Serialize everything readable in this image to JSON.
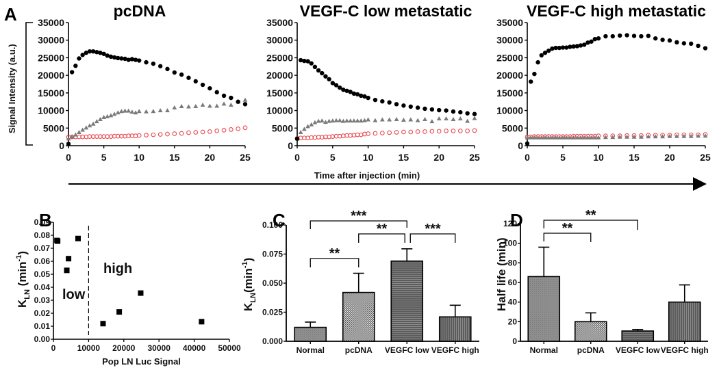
{
  "figure": {
    "panel_A_label": "A",
    "panel_B_label": "B",
    "panel_C_label": "C",
    "panel_D_label": "D",
    "shared_ylabel_A": "Signal Intensity (a.u.)",
    "shared_xlabel_A": "Time after injection (min)",
    "colors": {
      "series_filled_circle": "#000000",
      "series_triangle": "#7a7a7a",
      "series_open_circle": "#e8484f",
      "bar_normal": "#8c8c8c",
      "bar_pcdna": "#d8d8d8",
      "bar_vegfc_low": "#6a6a6a",
      "bar_vegfc_high": "#6a6a6a"
    }
  },
  "chart_data": [
    {
      "id": "A1",
      "type": "scatter",
      "title": "pcDNA",
      "xlabel": "",
      "ylabel": "Signal Intensity (a.u.)",
      "xlim": [
        0,
        25
      ],
      "ylim": [
        0,
        35000
      ],
      "xticks": [
        "0",
        "5",
        "10",
        "15",
        "20",
        "25"
      ],
      "yticks": [
        "0",
        "5000",
        "10000",
        "15000",
        "20000",
        "25000",
        "30000",
        "35000"
      ],
      "grid": false,
      "series": [
        {
          "name": "filled-circle",
          "marker": "filled-circle",
          "x": [
            0,
            0.5,
            1,
            1.5,
            2,
            2.5,
            3,
            3.5,
            4,
            4.5,
            5,
            5.5,
            6,
            6.5,
            7,
            7.5,
            8,
            8.5,
            9,
            9.5,
            10,
            11,
            12,
            13,
            14,
            15,
            16,
            17,
            18,
            19,
            20,
            21,
            22,
            23,
            24,
            25
          ],
          "y": [
            500,
            20900,
            22700,
            24800,
            25800,
            26400,
            26800,
            26800,
            26600,
            26400,
            26100,
            25600,
            25300,
            25100,
            24900,
            24800,
            24700,
            24400,
            24600,
            24400,
            24200,
            23700,
            23300,
            22600,
            21800,
            20800,
            20200,
            19300,
            18300,
            17300,
            16300,
            15200,
            14200,
            13600,
            12500,
            11800
          ]
        },
        {
          "name": "triangle",
          "marker": "triangle",
          "x": [
            0,
            0.5,
            1,
            1.5,
            2,
            2.5,
            3,
            3.5,
            4,
            4.5,
            5,
            5.5,
            6,
            6.5,
            7,
            7.5,
            8,
            8.5,
            9,
            9.5,
            10,
            11,
            12,
            13,
            14,
            15,
            16,
            17,
            18,
            19,
            20,
            21,
            22,
            23,
            24,
            25
          ],
          "y": [
            2000,
            2500,
            3100,
            3800,
            4500,
            5100,
            5700,
            6200,
            6900,
            7500,
            8100,
            8300,
            8600,
            9000,
            9400,
            9800,
            9900,
            9900,
            9600,
            9400,
            9800,
            9700,
            9800,
            10000,
            10000,
            10800,
            11200,
            11100,
            11200,
            11600,
            11300,
            11300,
            11900,
            11600,
            12500,
            13000
          ]
        },
        {
          "name": "open-circle",
          "marker": "open-circle",
          "x": [
            0,
            0.5,
            1,
            1.5,
            2,
            2.5,
            3,
            3.5,
            4,
            4.5,
            5,
            5.5,
            6,
            6.5,
            7,
            7.5,
            8,
            8.5,
            9,
            9.5,
            10,
            11,
            12,
            13,
            14,
            15,
            16,
            17,
            18,
            19,
            20,
            21,
            22,
            23,
            24,
            25
          ],
          "y": [
            2400,
            2500,
            2500,
            2500,
            2500,
            2500,
            2600,
            2600,
            2600,
            2600,
            2600,
            2600,
            2600,
            2700,
            2700,
            2700,
            2700,
            2800,
            2800,
            2800,
            2900,
            3000,
            3100,
            3200,
            3300,
            3400,
            3500,
            3700,
            3800,
            3900,
            4000,
            4200,
            4400,
            4600,
            4800,
            5100
          ]
        }
      ]
    },
    {
      "id": "A2",
      "type": "scatter",
      "title": "VEGF-C low metastatic",
      "xlabel": "Time after injection (min)",
      "ylabel": "",
      "xlim": [
        0,
        25
      ],
      "ylim": [
        0,
        35000
      ],
      "xticks": [
        "0",
        "5",
        "10",
        "15",
        "20",
        "25"
      ],
      "yticks": [
        "0",
        "5000",
        "10000",
        "15000",
        "20000",
        "25000",
        "30000",
        "35000"
      ],
      "grid": false,
      "series": [
        {
          "name": "filled-circle",
          "marker": "filled-circle",
          "x": [
            0,
            0.5,
            1,
            1.5,
            2,
            2.5,
            3,
            3.5,
            4,
            4.5,
            5,
            5.5,
            6,
            6.5,
            7,
            7.5,
            8,
            8.5,
            9,
            9.5,
            10,
            11,
            12,
            13,
            14,
            15,
            16,
            17,
            18,
            19,
            20,
            21,
            22,
            23,
            24,
            25
          ],
          "y": [
            2000,
            24300,
            24100,
            24000,
            23400,
            22400,
            21400,
            20600,
            19700,
            18900,
            17800,
            17200,
            16500,
            15900,
            15600,
            15300,
            14800,
            14600,
            14200,
            14000,
            13600,
            13000,
            12600,
            12300,
            11800,
            11400,
            11100,
            10800,
            10500,
            10300,
            10100,
            10000,
            9700,
            9500,
            9200,
            9000
          ]
        },
        {
          "name": "triangle",
          "marker": "triangle",
          "x": [
            0,
            0.5,
            1,
            1.5,
            2,
            2.5,
            3,
            3.5,
            4,
            4.5,
            5,
            5.5,
            6,
            6.5,
            7,
            7.5,
            8,
            8.5,
            9,
            9.5,
            10,
            11,
            12,
            13,
            14,
            15,
            16,
            17,
            18,
            19,
            20,
            21,
            22,
            23,
            24,
            25
          ],
          "y": [
            2000,
            3800,
            4700,
            5500,
            6000,
            6600,
            7000,
            7100,
            6700,
            7000,
            7100,
            7200,
            7200,
            7000,
            7100,
            7100,
            7100,
            7100,
            7100,
            7200,
            7400,
            7200,
            7400,
            7400,
            7500,
            7300,
            7400,
            7200,
            7500,
            6900,
            7700,
            7700,
            7500,
            7700,
            7000,
            7800
          ]
        },
        {
          "name": "open-circle",
          "marker": "open-circle",
          "x": [
            0,
            0.5,
            1,
            1.5,
            2,
            2.5,
            3,
            3.5,
            4,
            4.5,
            5,
            5.5,
            6,
            6.5,
            7,
            7.5,
            8,
            8.5,
            9,
            9.5,
            10,
            11,
            12,
            13,
            14,
            15,
            16,
            17,
            18,
            19,
            20,
            21,
            22,
            23,
            24,
            25
          ],
          "y": [
            2100,
            2200,
            2200,
            2200,
            2300,
            2300,
            2400,
            2400,
            2500,
            2500,
            2600,
            2700,
            2700,
            2800,
            2900,
            2900,
            3000,
            3100,
            3100,
            3300,
            3400,
            3500,
            3600,
            3700,
            3800,
            3900,
            3900,
            4000,
            4000,
            4100,
            4100,
            4200,
            4200,
            4200,
            4200,
            4300
          ]
        }
      ]
    },
    {
      "id": "A3",
      "type": "scatter",
      "title": "VEGF-C high metastatic",
      "xlabel": "",
      "ylabel": "",
      "xlim": [
        0,
        25
      ],
      "ylim": [
        0,
        35000
      ],
      "xticks": [
        "0",
        "5",
        "10",
        "15",
        "20",
        "25"
      ],
      "yticks": [
        "0",
        "5000",
        "10000",
        "15000",
        "20000",
        "25000",
        "30000",
        "35000"
      ],
      "grid": false,
      "series": [
        {
          "name": "filled-circle",
          "marker": "filled-circle",
          "x": [
            0,
            0.5,
            1,
            1.5,
            2,
            2.5,
            3,
            3.5,
            4,
            4.5,
            5,
            5.5,
            6,
            6.5,
            7,
            7.5,
            8,
            8.5,
            9,
            9.5,
            10,
            11,
            12,
            13,
            14,
            15,
            16,
            17,
            18,
            19,
            20,
            21,
            22,
            23,
            24,
            25
          ],
          "y": [
            600,
            18200,
            20400,
            23700,
            25700,
            26400,
            27000,
            27600,
            27800,
            27800,
            27900,
            27900,
            28100,
            28200,
            28300,
            28500,
            28700,
            29300,
            29600,
            30300,
            30500,
            31100,
            31100,
            31300,
            31400,
            31200,
            31100,
            31200,
            30500,
            30100,
            29900,
            29400,
            29100,
            29000,
            28400,
            27700
          ]
        },
        {
          "name": "triangle",
          "marker": "triangle",
          "x": [
            0,
            0.5,
            1,
            1.5,
            2,
            2.5,
            3,
            3.5,
            4,
            4.5,
            5,
            5.5,
            6,
            6.5,
            7,
            7.5,
            8,
            8.5,
            9,
            9.5,
            10,
            11,
            12,
            13,
            14,
            15,
            16,
            17,
            18,
            19,
            20,
            21,
            22,
            23,
            24,
            25
          ],
          "y": [
            2300,
            2300,
            2300,
            2300,
            2300,
            2300,
            2300,
            2300,
            2300,
            2300,
            2300,
            2300,
            2300,
            2300,
            2300,
            2300,
            2300,
            2300,
            2300,
            2300,
            2300,
            2400,
            2400,
            2500,
            2500,
            2500,
            2500,
            2600,
            2600,
            2600,
            2700,
            2700,
            2700,
            2700,
            2800,
            2800
          ]
        },
        {
          "name": "open-circle",
          "marker": "open-circle",
          "x": [
            0,
            0.5,
            1,
            1.5,
            2,
            2.5,
            3,
            3.5,
            4,
            4.5,
            5,
            5.5,
            6,
            6.5,
            7,
            7.5,
            8,
            8.5,
            9,
            9.5,
            10,
            11,
            12,
            13,
            14,
            15,
            16,
            17,
            18,
            19,
            20,
            21,
            22,
            23,
            24,
            25
          ],
          "y": [
            2500,
            2500,
            2600,
            2600,
            2600,
            2600,
            2600,
            2600,
            2600,
            2600,
            2600,
            2600,
            2600,
            2700,
            2700,
            2700,
            2700,
            2700,
            2700,
            2700,
            2800,
            2800,
            2800,
            2800,
            2900,
            2900,
            2900,
            3000,
            3000,
            3000,
            3000,
            3100,
            3100,
            3100,
            3100,
            3200
          ]
        }
      ]
    },
    {
      "id": "B",
      "type": "scatter",
      "title": "",
      "xlabel": "Pop LN Luc Signal",
      "ylabel_main": "K",
      "ylabel_sub": "LN",
      "ylabel_rest": " (min",
      "ylabel_sup": "-1",
      "ylabel_close": ")",
      "xlim": [
        0,
        50000
      ],
      "ylim": [
        0,
        0.09
      ],
      "xticks": [
        "0",
        "10000",
        "20000",
        "30000",
        "40000",
        "50000"
      ],
      "yticks": [
        "0.00",
        "0.01",
        "0.02",
        "0.03",
        "0.04",
        "0.05",
        "0.06",
        "0.07",
        "0.08",
        "0.09"
      ],
      "grid": false,
      "threshold_x": 10000,
      "annotations": [
        "low",
        "high"
      ],
      "points": [
        {
          "x": 1000,
          "y": 0.076
        },
        {
          "x": 1200,
          "y": 0.0755
        },
        {
          "x": 7000,
          "y": 0.0775
        },
        {
          "x": 4300,
          "y": 0.062
        },
        {
          "x": 3800,
          "y": 0.053
        },
        {
          "x": 24800,
          "y": 0.0355
        },
        {
          "x": 18700,
          "y": 0.021
        },
        {
          "x": 14100,
          "y": 0.012
        },
        {
          "x": 42100,
          "y": 0.0135
        }
      ]
    },
    {
      "id": "C",
      "type": "bar",
      "title": "",
      "xlabel": "",
      "ylabel_main": "K",
      "ylabel_sub": "LN",
      "ylabel_rest": "(min",
      "ylabel_sup": "-1",
      "ylabel_close": ")",
      "categories": [
        "Normal",
        "pcDNA",
        "VEGFC low",
        "VEGFC high"
      ],
      "values": [
        0.012,
        0.042,
        0.069,
        0.021
      ],
      "errors": [
        0.0045,
        0.0165,
        0.0105,
        0.01
      ],
      "ylim": [
        0,
        0.1
      ],
      "yticks": [
        "0.000",
        "0.025",
        "0.050",
        "0.075",
        "0.100"
      ],
      "grid": false,
      "significance": [
        {
          "from": "Normal",
          "to": "VEGFC low",
          "label": "***"
        },
        {
          "from": "pcDNA",
          "to": "VEGFC low",
          "label": "**"
        },
        {
          "from": "VEGFC low",
          "to": "VEGFC high",
          "label": "***"
        },
        {
          "from": "Normal",
          "to": "pcDNA",
          "label": "**"
        }
      ]
    },
    {
      "id": "D",
      "type": "bar",
      "title": "",
      "xlabel": "",
      "ylabel": "Half life (min)",
      "categories": [
        "Normal",
        "pcDNA",
        "VEGFC low",
        "VEGFC high"
      ],
      "values": [
        66,
        20,
        10.5,
        40
      ],
      "errors": [
        30,
        9,
        1.5,
        17.5
      ],
      "ylim": [
        0,
        120
      ],
      "yticks": [
        "0",
        "20",
        "40",
        "60",
        "80",
        "100",
        "120"
      ],
      "grid": false,
      "significance": [
        {
          "from": "Normal",
          "to": "VEGFC low",
          "label": "**"
        },
        {
          "from": "Normal",
          "to": "pcDNA",
          "label": "**"
        }
      ]
    }
  ]
}
